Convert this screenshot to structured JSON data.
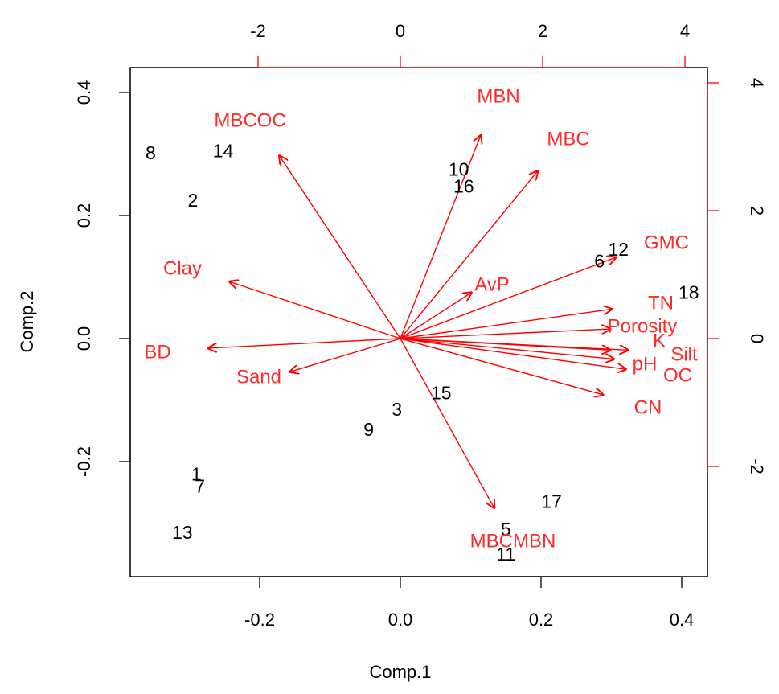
{
  "chart_data": {
    "type": "scatter",
    "subtype": "biplot",
    "xlabel": "Comp.1",
    "ylabel": "Comp.2",
    "xlim": [
      -0.38,
      0.43
    ],
    "ylim": [
      -0.39,
      0.44
    ],
    "x_ticks": [
      "-0.2",
      "0.0",
      "0.2",
      "0.4"
    ],
    "y_ticks": [
      "-0.2",
      "0.0",
      "0.2",
      "0.4"
    ],
    "top_ticks": [
      "-2",
      "0",
      "2",
      "4"
    ],
    "right_ticks": [
      "-2",
      "0",
      "2",
      "4"
    ],
    "observation_color": "#000000",
    "variable_color": "#ff0000",
    "observations": [
      {
        "label": "1",
        "x": -0.29,
        "y": -0.22
      },
      {
        "label": "2",
        "x": -0.295,
        "y": 0.225
      },
      {
        "label": "3",
        "x": -0.005,
        "y": -0.115
      },
      {
        "label": "5",
        "x": 0.15,
        "y": -0.31
      },
      {
        "label": "6",
        "x": 0.283,
        "y": 0.126
      },
      {
        "label": "7",
        "x": -0.285,
        "y": -0.24
      },
      {
        "label": "8",
        "x": -0.355,
        "y": 0.302
      },
      {
        "label": "9",
        "x": -0.045,
        "y": -0.148
      },
      {
        "label": "10",
        "x": 0.083,
        "y": 0.275
      },
      {
        "label": "11",
        "x": 0.15,
        "y": -0.35
      },
      {
        "label": "12",
        "x": 0.31,
        "y": 0.145
      },
      {
        "label": "13",
        "x": -0.31,
        "y": -0.315
      },
      {
        "label": "14",
        "x": -0.252,
        "y": 0.305
      },
      {
        "label": "15",
        "x": 0.058,
        "y": -0.088
      },
      {
        "label": "16",
        "x": 0.09,
        "y": 0.248
      },
      {
        "label": "17",
        "x": 0.215,
        "y": -0.265
      },
      {
        "label": "18",
        "x": 0.41,
        "y": 0.075
      }
    ],
    "variables": [
      {
        "label": "MBN",
        "x": 1.13,
        "y": 3.18
      },
      {
        "label": "MBC",
        "x": 1.93,
        "y": 2.62
      },
      {
        "label": "MBCOC",
        "x": -1.7,
        "y": 2.86
      },
      {
        "label": "Clay",
        "x": -2.4,
        "y": 0.89
      },
      {
        "label": "BD",
        "x": -2.7,
        "y": -0.15
      },
      {
        "label": "Sand",
        "x": -1.55,
        "y": -0.52
      },
      {
        "label": "AvP",
        "x": 1.0,
        "y": 0.72
      },
      {
        "label": "GMC",
        "x": 3.03,
        "y": 1.27
      },
      {
        "label": "TN",
        "x": 2.97,
        "y": 0.46
      },
      {
        "label": "Porosity",
        "x": 2.95,
        "y": 0.15
      },
      {
        "label": "K",
        "x": 2.95,
        "y": -0.18
      },
      {
        "label": "Silt",
        "x": 3.2,
        "y": -0.18
      },
      {
        "label": "pH",
        "x": 3.0,
        "y": -0.32
      },
      {
        "label": "OC",
        "x": 3.17,
        "y": -0.48
      },
      {
        "label": "CN",
        "x": 2.85,
        "y": -0.88
      },
      {
        "label": "MBCMBN",
        "x": 1.32,
        "y": -2.65
      }
    ]
  }
}
